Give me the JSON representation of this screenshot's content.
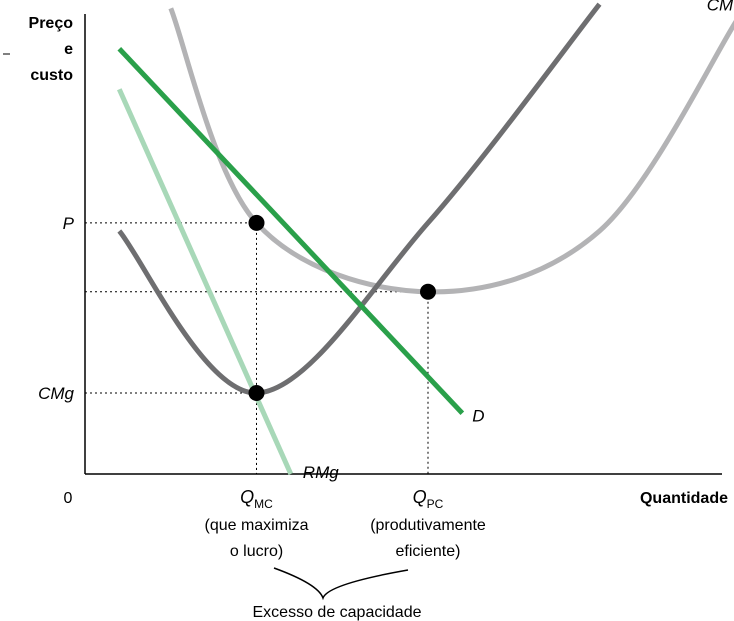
{
  "chart_data": {
    "type": "line",
    "title": "",
    "xlabel": "Quantidade",
    "ylabel_lines": [
      "Preço",
      "e",
      "custo"
    ],
    "origin_label": "0",
    "grid": false,
    "series": [
      {
        "name": "CMg",
        "color": "#6e6e70",
        "points": [
          [
            1.0,
            6.0
          ],
          [
            5.0,
            2.0
          ],
          [
            10.0,
            6.2
          ],
          [
            15.0,
            11.6
          ]
        ]
      },
      {
        "name": "CMT",
        "color": "#b3b3b5",
        "points": [
          [
            2.5,
            11.5
          ],
          [
            5.0,
            6.2
          ],
          [
            10.0,
            4.5
          ],
          [
            15.0,
            6.0
          ],
          [
            19.0,
            11.2
          ]
        ]
      },
      {
        "name": "D",
        "color": "#2aa04a",
        "points": [
          [
            1.0,
            10.5
          ],
          [
            11.0,
            1.5
          ]
        ]
      },
      {
        "name": "RMg",
        "color": "#a8d8b8",
        "points": [
          [
            1.0,
            9.5
          ],
          [
            6.0,
            0.0
          ]
        ]
      }
    ],
    "key_points": [
      {
        "x": 5.0,
        "y": 6.2
      },
      {
        "x": 10.0,
        "y": 4.5
      },
      {
        "x": 5.0,
        "y": 2.0
      }
    ],
    "y_ticks": [
      {
        "label": "P",
        "value": 6.2
      },
      {
        "label": "CMg",
        "value": 2.0
      }
    ],
    "x_ticks": [
      {
        "label_main": "Q",
        "label_sub": "MC",
        "value": 5.0,
        "caption": [
          "(que maximiza",
          "o lucro)"
        ]
      },
      {
        "label_main": "Q",
        "label_sub": "PC",
        "value": 10.0,
        "caption": [
          "(produtivamente",
          "eficiente)"
        ]
      }
    ],
    "annotation": "Excesso de capacidade"
  }
}
